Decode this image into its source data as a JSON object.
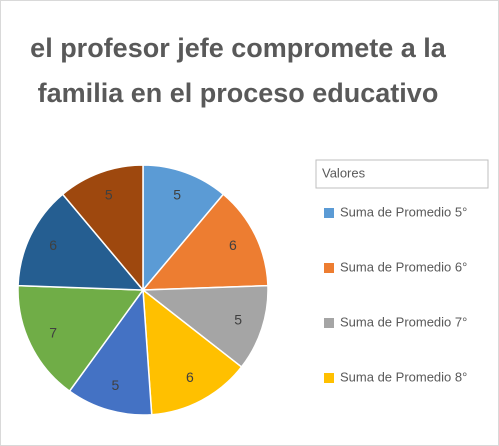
{
  "chart_data": {
    "type": "pie",
    "title": [
      "el profesor jefe compromete a la",
      "familia  en el proceso educativo"
    ],
    "legend_title": "Valores",
    "categories": [
      "Suma de Promedio 5°",
      "Suma de Promedio 6°",
      "Suma de Promedio 7°",
      "Suma de Promedio 8°",
      null,
      null,
      null,
      null
    ],
    "values": [
      5,
      6,
      5,
      6,
      5,
      7,
      6,
      5
    ],
    "colors": [
      "#5b9bd5",
      "#ed7d31",
      "#a5a5a5",
      "#ffc000",
      "#4472c4",
      "#70ad47",
      "#255e91",
      "#9e480e"
    ],
    "legend": "right"
  }
}
